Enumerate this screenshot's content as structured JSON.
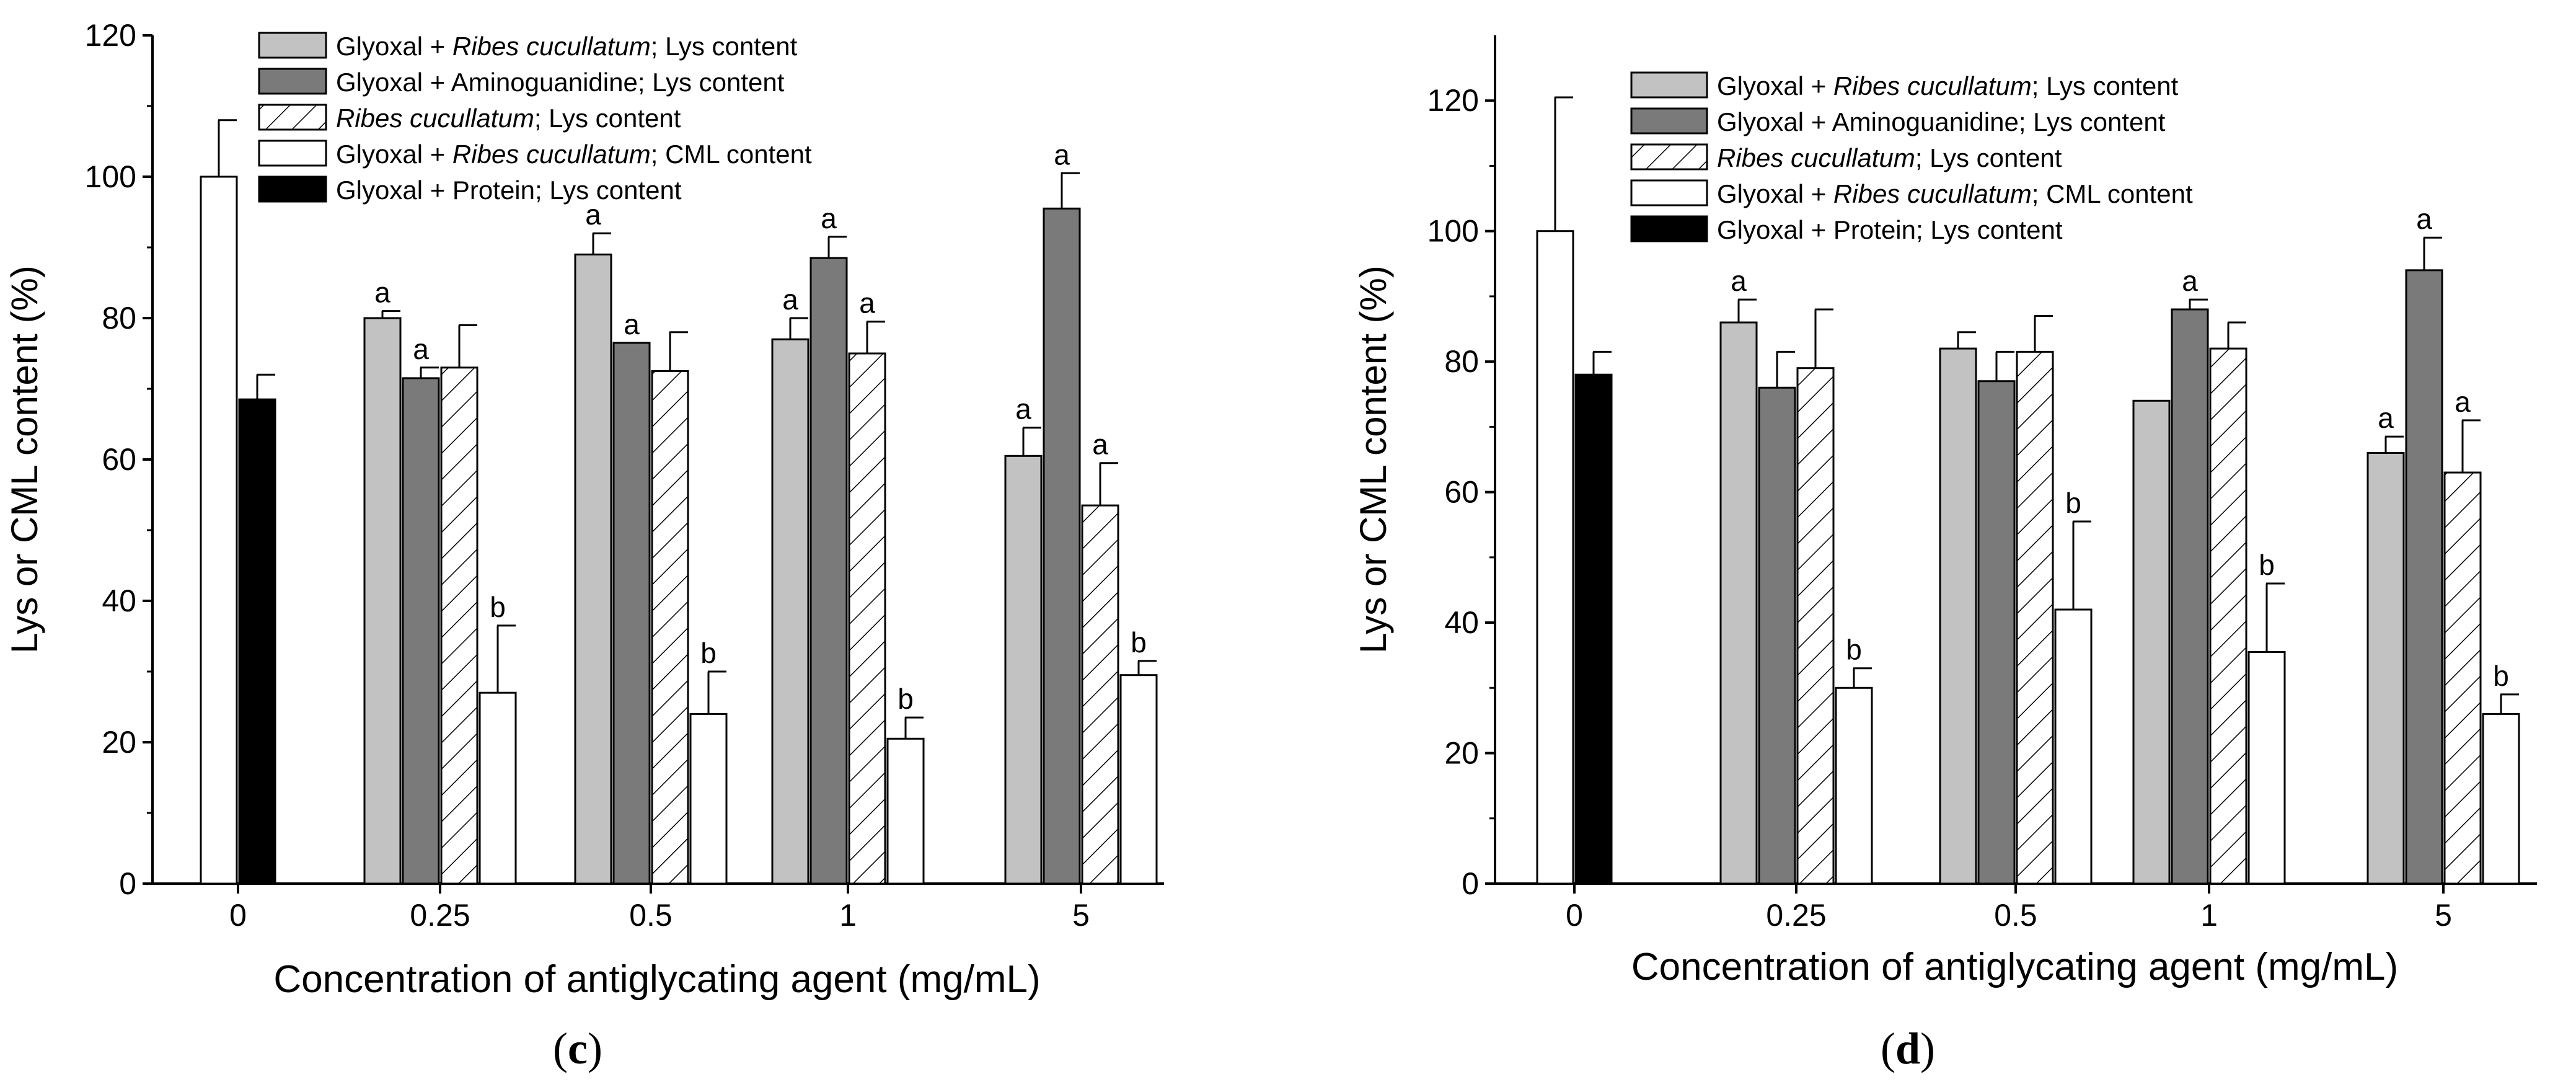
{
  "colors": {
    "light_gray": "#c2c2c2",
    "dark_gray": "#7a7a7a",
    "white": "#ffffff",
    "black": "#000000",
    "axis": "#000000"
  },
  "chart_data": [
    {
      "type": "bar",
      "panel_label": "c",
      "xlabel": "Concentration of antiglycating agent (mg/mL)",
      "ylabel": "Lys or CML content (%)",
      "ylim": [
        0,
        120
      ],
      "yticks": [
        0,
        20,
        40,
        60,
        80,
        100,
        120
      ],
      "categories": [
        "0",
        "0.25",
        "0.5",
        "1",
        "5"
      ],
      "legend_position": "top-left",
      "legend": [
        {
          "parts": [
            "Glyoxal + ",
            "Ribes cucullatum",
            "; Lys content"
          ],
          "fill": "light"
        },
        {
          "parts": [
            "Glyoxal + Aminoguanidine; Lys content"
          ],
          "fill": "dark"
        },
        {
          "parts": [
            "",
            "Ribes cucullatum",
            "; Lys content"
          ],
          "fill": "hatch"
        },
        {
          "parts": [
            "Glyoxal + ",
            "Ribes cucullatum",
            "; CML content"
          ],
          "fill": "white"
        },
        {
          "parts": [
            "Glyoxal + Protein; Lys content"
          ],
          "fill": "black"
        }
      ],
      "groups": [
        {
          "category": "0",
          "bars": [
            {
              "series": "Glyoxal + Ribes cucullatum; CML content",
              "fill": "white",
              "value": 100,
              "error": 8,
              "label": ""
            },
            {
              "series": "Glyoxal + Protein; Lys content",
              "fill": "black",
              "value": 68.5,
              "error": 3.5,
              "label": ""
            }
          ]
        },
        {
          "category": "0.25",
          "bars": [
            {
              "series": "Glyoxal + Ribes cucullatum; Lys content",
              "fill": "light",
              "value": 80,
              "error": 1,
              "label": "a"
            },
            {
              "series": "Glyoxal + Aminoguanidine; Lys content",
              "fill": "dark",
              "value": 71.5,
              "error": 1.5,
              "label": "a"
            },
            {
              "series": "Ribes cucullatum; Lys content",
              "fill": "hatch",
              "value": 73,
              "error": 6,
              "label": ""
            },
            {
              "series": "Glyoxal + Ribes cucullatum; CML content",
              "fill": "white",
              "value": 27,
              "error": 9.5,
              "label": "b"
            }
          ]
        },
        {
          "category": "0.5",
          "bars": [
            {
              "series": "Glyoxal + Ribes cucullatum; Lys content",
              "fill": "light",
              "value": 89,
              "error": 3,
              "label": "a"
            },
            {
              "series": "Glyoxal + Aminoguanidine; Lys content",
              "fill": "dark",
              "value": 76.5,
              "error": 0,
              "label": "a"
            },
            {
              "series": "Ribes cucullatum; Lys content",
              "fill": "hatch",
              "value": 72.5,
              "error": 5.5,
              "label": ""
            },
            {
              "series": "Glyoxal + Ribes cucullatum; CML content",
              "fill": "white",
              "value": 24,
              "error": 6,
              "label": "b"
            }
          ]
        },
        {
          "category": "1",
          "bars": [
            {
              "series": "Glyoxal + Ribes cucullatum; Lys content",
              "fill": "light",
              "value": 77,
              "error": 3,
              "label": "a"
            },
            {
              "series": "Glyoxal + Aminoguanidine; Lys content",
              "fill": "dark",
              "value": 88.5,
              "error": 3,
              "label": "a"
            },
            {
              "series": "Ribes cucullatum; Lys content",
              "fill": "hatch",
              "value": 75,
              "error": 4.5,
              "label": "a"
            },
            {
              "series": "Glyoxal + Ribes cucullatum; CML content",
              "fill": "white",
              "value": 20.5,
              "error": 3,
              "label": "b"
            }
          ]
        },
        {
          "category": "5",
          "bars": [
            {
              "series": "Glyoxal + Ribes cucullatum; Lys content",
              "fill": "light",
              "value": 60.5,
              "error": 4,
              "label": "a"
            },
            {
              "series": "Glyoxal + Aminoguanidine; Lys content",
              "fill": "dark",
              "value": 95.5,
              "error": 5,
              "label": "a"
            },
            {
              "series": "Ribes cucullatum; Lys content",
              "fill": "hatch",
              "value": 53.5,
              "error": 6,
              "label": "a"
            },
            {
              "series": "Glyoxal + Ribes cucullatum; CML content",
              "fill": "white",
              "value": 29.5,
              "error": 2,
              "label": "b"
            }
          ]
        }
      ]
    },
    {
      "type": "bar",
      "panel_label": "d",
      "xlabel": "Concentration of antiglycating agent (mg/mL)",
      "ylabel": "Lys or CML content (%)",
      "ylim": [
        0,
        130
      ],
      "yticks": [
        0,
        20,
        40,
        60,
        80,
        100,
        120
      ],
      "categories": [
        "0",
        "0.25",
        "0.5",
        "1",
        "5"
      ],
      "legend_position": "top-right",
      "legend": [
        {
          "parts": [
            "Glyoxal + ",
            "Ribes cucullatum",
            "; Lys content"
          ],
          "fill": "light"
        },
        {
          "parts": [
            "Glyoxal + Aminoguanidine; Lys content"
          ],
          "fill": "dark"
        },
        {
          "parts": [
            "",
            "Ribes cucullatum",
            "; Lys content"
          ],
          "fill": "hatch"
        },
        {
          "parts": [
            "Glyoxal + ",
            "Ribes cucullatum",
            "; CML content"
          ],
          "fill": "white"
        },
        {
          "parts": [
            "Glyoxal + Protein; Lys content"
          ],
          "fill": "black"
        }
      ],
      "groups": [
        {
          "category": "0",
          "bars": [
            {
              "series": "Glyoxal + Ribes cucullatum; CML content",
              "fill": "white",
              "value": 100,
              "error": 20.5,
              "label": ""
            },
            {
              "series": "Glyoxal + Protein; Lys content",
              "fill": "black",
              "value": 78,
              "error": 3.5,
              "label": ""
            }
          ]
        },
        {
          "category": "0.25",
          "bars": [
            {
              "series": "Glyoxal + Ribes cucullatum; Lys content",
              "fill": "light",
              "value": 86,
              "error": 3.5,
              "label": "a"
            },
            {
              "series": "Glyoxal + Aminoguanidine; Lys content",
              "fill": "dark",
              "value": 76,
              "error": 5.5,
              "label": ""
            },
            {
              "series": "Ribes cucullatum; Lys content",
              "fill": "hatch",
              "value": 79,
              "error": 9,
              "label": ""
            },
            {
              "series": "Glyoxal + Ribes cucullatum; CML content",
              "fill": "white",
              "value": 30,
              "error": 3,
              "label": "b"
            }
          ]
        },
        {
          "category": "0.5",
          "bars": [
            {
              "series": "Glyoxal + Ribes cucullatum; Lys content",
              "fill": "light",
              "value": 82,
              "error": 2.5,
              "label": ""
            },
            {
              "series": "Glyoxal + Aminoguanidine; Lys content",
              "fill": "dark",
              "value": 77,
              "error": 4.5,
              "label": ""
            },
            {
              "series": "Ribes cucullatum; Lys content",
              "fill": "hatch",
              "value": 81.5,
              "error": 5.5,
              "label": ""
            },
            {
              "series": "Glyoxal + Ribes cucullatum; CML content",
              "fill": "white",
              "value": 42,
              "error": 13.5,
              "label": "b"
            }
          ]
        },
        {
          "category": "1",
          "bars": [
            {
              "series": "Glyoxal + Ribes cucullatum; Lys content",
              "fill": "light",
              "value": 74,
              "error": 0,
              "label": ""
            },
            {
              "series": "Glyoxal + Aminoguanidine; Lys content",
              "fill": "dark",
              "value": 88,
              "error": 1.5,
              "label": "a"
            },
            {
              "series": "Ribes cucullatum; Lys content",
              "fill": "hatch",
              "value": 82,
              "error": 4,
              "label": ""
            },
            {
              "series": "Glyoxal + Ribes cucullatum; CML content",
              "fill": "white",
              "value": 35.5,
              "error": 10.5,
              "label": "b"
            }
          ]
        },
        {
          "category": "5",
          "bars": [
            {
              "series": "Glyoxal + Ribes cucullatum; Lys content",
              "fill": "light",
              "value": 66,
              "error": 2.5,
              "label": "a"
            },
            {
              "series": "Glyoxal + Aminoguanidine; Lys content",
              "fill": "dark",
              "value": 94,
              "error": 5,
              "label": "a"
            },
            {
              "series": "Ribes cucullatum; Lys content",
              "fill": "hatch",
              "value": 63,
              "error": 8,
              "label": "a"
            },
            {
              "series": "Glyoxal + Ribes cucullatum; CML content",
              "fill": "white",
              "value": 26,
              "error": 3,
              "label": "b"
            }
          ]
        }
      ]
    }
  ]
}
